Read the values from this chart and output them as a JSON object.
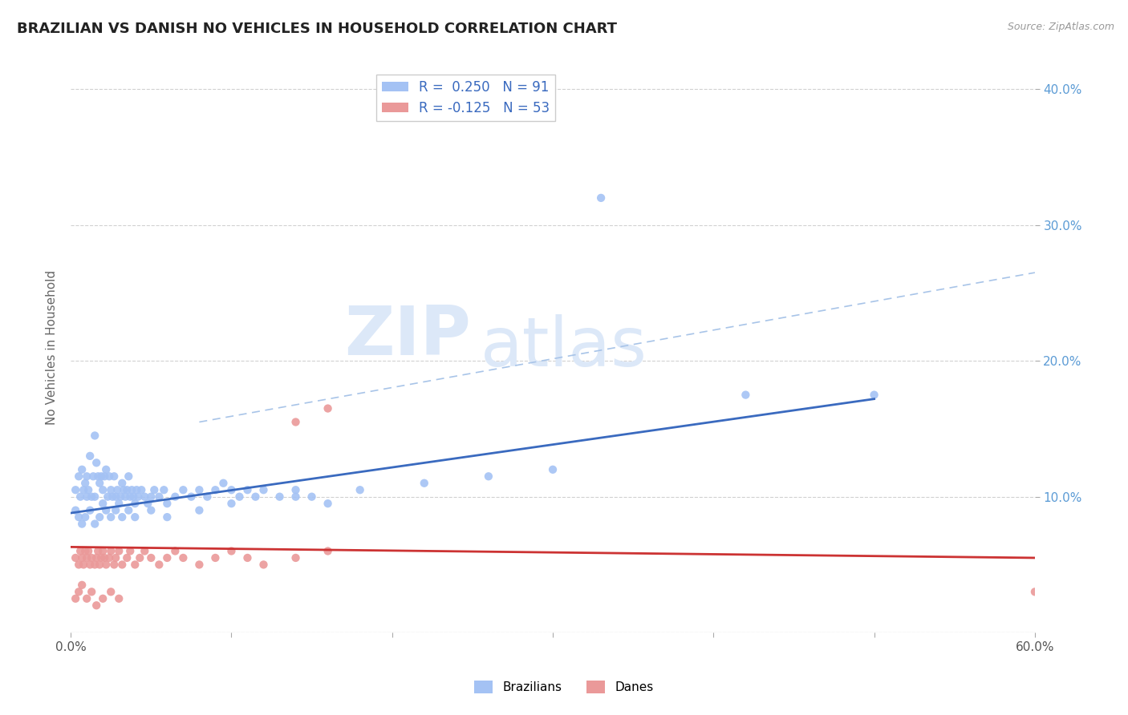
{
  "title": "BRAZILIAN VS DANISH NO VEHICLES IN HOUSEHOLD CORRELATION CHART",
  "source_text": "Source: ZipAtlas.com",
  "ylabel": "No Vehicles in Household",
  "xlim": [
    0.0,
    0.6
  ],
  "ylim": [
    0.0,
    0.42
  ],
  "blue_R": 0.25,
  "blue_N": 91,
  "pink_R": -0.125,
  "pink_N": 53,
  "blue_color": "#a4c2f4",
  "pink_color": "#ea9999",
  "blue_line_color": "#3a6abf",
  "pink_line_color": "#cc3333",
  "dashed_line_color": "#a8c4e8",
  "watermark_zip": "ZIP",
  "watermark_atlas": "atlas",
  "watermark_color": "#dce8f8",
  "background_color": "#ffffff",
  "grid_color": "#cccccc",
  "title_color": "#222222",
  "title_fontsize": 13,
  "blue_line_x0": 0.0,
  "blue_line_y0": 0.088,
  "blue_line_x1": 0.5,
  "blue_line_y1": 0.172,
  "pink_line_x0": 0.0,
  "pink_line_y0": 0.063,
  "pink_line_x1": 0.6,
  "pink_line_y1": 0.055,
  "dash_line_x0": 0.08,
  "dash_line_y0": 0.155,
  "dash_line_x1": 0.6,
  "dash_line_y1": 0.265,
  "blue_scatter_x": [
    0.003,
    0.005,
    0.006,
    0.007,
    0.008,
    0.009,
    0.01,
    0.01,
    0.011,
    0.012,
    0.013,
    0.014,
    0.015,
    0.015,
    0.016,
    0.017,
    0.018,
    0.019,
    0.02,
    0.02,
    0.021,
    0.022,
    0.023,
    0.024,
    0.025,
    0.026,
    0.027,
    0.028,
    0.029,
    0.03,
    0.031,
    0.032,
    0.033,
    0.034,
    0.035,
    0.036,
    0.037,
    0.038,
    0.039,
    0.04,
    0.041,
    0.042,
    0.044,
    0.046,
    0.048,
    0.05,
    0.052,
    0.055,
    0.058,
    0.06,
    0.065,
    0.07,
    0.075,
    0.08,
    0.085,
    0.09,
    0.095,
    0.1,
    0.105,
    0.11,
    0.115,
    0.12,
    0.13,
    0.14,
    0.15,
    0.16,
    0.003,
    0.005,
    0.007,
    0.009,
    0.012,
    0.015,
    0.018,
    0.022,
    0.025,
    0.028,
    0.032,
    0.036,
    0.04,
    0.05,
    0.06,
    0.08,
    0.1,
    0.14,
    0.18,
    0.22,
    0.26,
    0.3,
    0.33,
    0.42,
    0.5
  ],
  "blue_scatter_y": [
    0.105,
    0.115,
    0.1,
    0.12,
    0.105,
    0.11,
    0.115,
    0.1,
    0.105,
    0.13,
    0.1,
    0.115,
    0.145,
    0.1,
    0.125,
    0.115,
    0.11,
    0.115,
    0.105,
    0.095,
    0.115,
    0.12,
    0.1,
    0.115,
    0.105,
    0.1,
    0.115,
    0.1,
    0.105,
    0.095,
    0.1,
    0.11,
    0.105,
    0.1,
    0.105,
    0.115,
    0.1,
    0.105,
    0.1,
    0.095,
    0.105,
    0.1,
    0.105,
    0.1,
    0.095,
    0.1,
    0.105,
    0.1,
    0.105,
    0.095,
    0.1,
    0.105,
    0.1,
    0.105,
    0.1,
    0.105,
    0.11,
    0.105,
    0.1,
    0.105,
    0.1,
    0.105,
    0.1,
    0.105,
    0.1,
    0.095,
    0.09,
    0.085,
    0.08,
    0.085,
    0.09,
    0.08,
    0.085,
    0.09,
    0.085,
    0.09,
    0.085,
    0.09,
    0.085,
    0.09,
    0.085,
    0.09,
    0.095,
    0.1,
    0.105,
    0.11,
    0.115,
    0.12,
    0.32,
    0.175,
    0.175
  ],
  "pink_scatter_x": [
    0.003,
    0.005,
    0.006,
    0.007,
    0.008,
    0.009,
    0.01,
    0.011,
    0.012,
    0.013,
    0.015,
    0.016,
    0.017,
    0.018,
    0.019,
    0.02,
    0.021,
    0.022,
    0.024,
    0.025,
    0.027,
    0.028,
    0.03,
    0.032,
    0.035,
    0.037,
    0.04,
    0.043,
    0.046,
    0.05,
    0.055,
    0.06,
    0.065,
    0.07,
    0.08,
    0.09,
    0.1,
    0.11,
    0.12,
    0.14,
    0.16,
    0.003,
    0.005,
    0.007,
    0.01,
    0.013,
    0.016,
    0.02,
    0.025,
    0.03,
    0.14,
    0.16,
    0.6
  ],
  "pink_scatter_y": [
    0.055,
    0.05,
    0.06,
    0.055,
    0.05,
    0.06,
    0.055,
    0.06,
    0.05,
    0.055,
    0.05,
    0.055,
    0.06,
    0.05,
    0.055,
    0.06,
    0.055,
    0.05,
    0.055,
    0.06,
    0.05,
    0.055,
    0.06,
    0.05,
    0.055,
    0.06,
    0.05,
    0.055,
    0.06,
    0.055,
    0.05,
    0.055,
    0.06,
    0.055,
    0.05,
    0.055,
    0.06,
    0.055,
    0.05,
    0.055,
    0.06,
    0.025,
    0.03,
    0.035,
    0.025,
    0.03,
    0.02,
    0.025,
    0.03,
    0.025,
    0.155,
    0.165,
    0.03
  ]
}
